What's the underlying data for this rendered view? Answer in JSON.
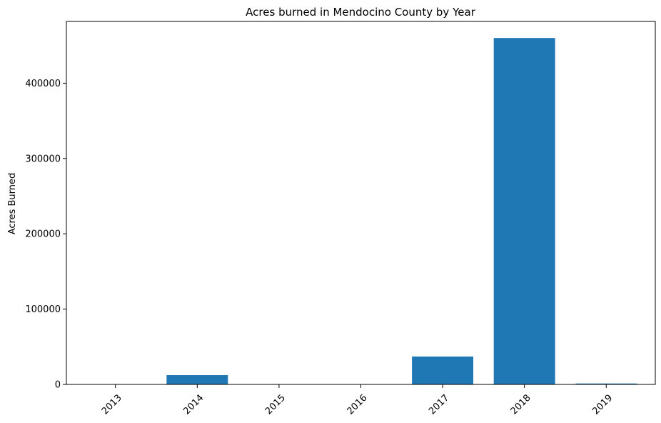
{
  "chart_data": {
    "type": "bar",
    "title": "Acres burned in Mendocino County by Year",
    "xlabel": "",
    "ylabel": "Acres Burned",
    "categories": [
      "2013",
      "2014",
      "2015",
      "2016",
      "2017",
      "2018",
      "2019"
    ],
    "values": [
      0,
      12300,
      0,
      0,
      37000,
      460000,
      1200
    ],
    "ylim": [
      0,
      482000
    ],
    "yticks": [
      0,
      100000,
      200000,
      300000,
      400000
    ],
    "ytick_labels": [
      "0",
      "100000",
      "200000",
      "300000",
      "400000"
    ],
    "bar_color": "#1f77b4",
    "grid": false,
    "xtick_rotation": "45 degrees, right-aligned"
  }
}
